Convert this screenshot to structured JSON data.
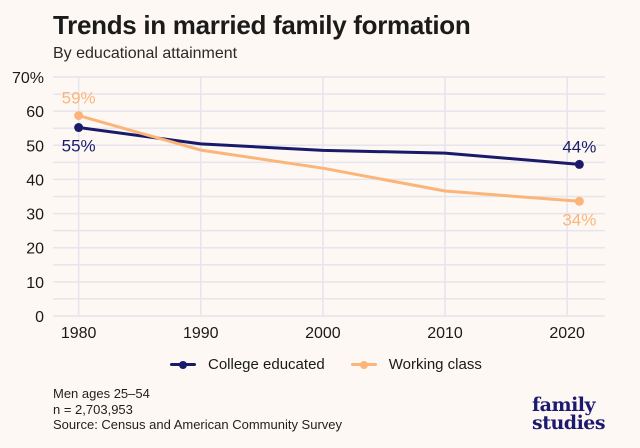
{
  "header": {
    "title": "Trends in married family formation",
    "subtitle": "By educational attainment"
  },
  "chart_data": {
    "type": "line",
    "title": "Trends in married family formation",
    "subtitle": "By educational attainment",
    "xlabel": "",
    "ylabel": "",
    "xlim": [
      1977.9,
      2023.1
    ],
    "ylim": [
      0,
      70
    ],
    "x_ticks": [
      1980,
      1990,
      2000,
      2010,
      2020
    ],
    "x_tick_labels": [
      "1980",
      "1990",
      "2000",
      "2010",
      "2020"
    ],
    "y_ticks": [
      0,
      10,
      20,
      30,
      40,
      50,
      60,
      70
    ],
    "y_tick_labels": [
      "0",
      "10",
      "20",
      "30",
      "40",
      "50",
      "60",
      "70%"
    ],
    "y_minor_ticks": [
      5,
      15,
      25,
      35,
      45,
      55,
      65
    ],
    "grid": true,
    "legend": "bottom",
    "series": [
      {
        "name": "College educated",
        "color": "#1a1a6b",
        "x": [
          1980,
          1990,
          2000,
          2010,
          2021
        ],
        "values": [
          55.2,
          50.4,
          48.5,
          47.7,
          44.4
        ],
        "labels": [
          {
            "index": 0,
            "text": "55%",
            "position": "below"
          },
          {
            "index": 4,
            "text": "44%",
            "position": "above"
          }
        ]
      },
      {
        "name": "Working class",
        "color": "#fbb57a",
        "x": [
          1980,
          1990,
          2000,
          2010,
          2021
        ],
        "values": [
          58.7,
          48.6,
          43.3,
          36.6,
          33.6
        ],
        "labels": [
          {
            "index": 0,
            "text": "59%",
            "position": "above"
          },
          {
            "index": 4,
            "text": "34%",
            "position": "below"
          }
        ]
      }
    ]
  },
  "legend": {
    "items": [
      {
        "label": "College educated",
        "color": "#1a1a6b"
      },
      {
        "label": "Working class",
        "color": "#fbb57a"
      }
    ]
  },
  "footer": {
    "line1": "Men ages 25–54",
    "line2": "n = 2,703,953",
    "line3": "Source: Census and American Community Survey"
  },
  "logo": {
    "line1": "family",
    "line2": "studies"
  },
  "colors": {
    "background": "#fdf8f3",
    "grid": "#e6e4ec"
  }
}
